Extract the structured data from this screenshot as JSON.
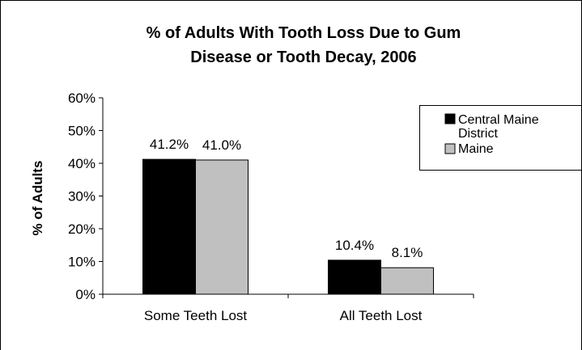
{
  "chart_data": {
    "type": "bar",
    "title_line1": "% of Adults With Tooth Loss Due to Gum",
    "title_line2": "Disease or Tooth Decay, 2006",
    "xlabel": "",
    "ylabel": "% of Adults",
    "ylim": [
      0,
      60
    ],
    "yticks": [
      "0%",
      "10%",
      "20%",
      "30%",
      "40%",
      "50%",
      "60%"
    ],
    "categories": [
      "Some Teeth Lost",
      "All Teeth Lost"
    ],
    "series": [
      {
        "name_line1": "Central Maine",
        "name_line2": "District",
        "values": [
          41.2,
          10.4
        ],
        "labels": [
          "41.2%",
          "10.4%"
        ],
        "color": "#000000"
      },
      {
        "name_line1": "Maine",
        "name_line2": "",
        "values": [
          41.0,
          8.1
        ],
        "labels": [
          "41.0%",
          "8.1%"
        ],
        "color": "#c0c0c0"
      }
    ],
    "grid": false,
    "legend_position": "right"
  }
}
